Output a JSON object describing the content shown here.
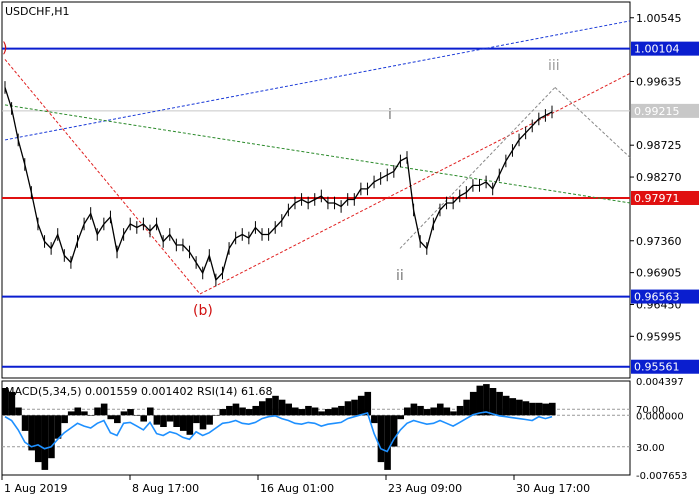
{
  "window": {
    "symbol_label": "USDCHF,H1"
  },
  "indicator": {
    "label": "MACD(5,34,5) 0.001559 0.001402 RSI(14) 61.68",
    "right_labels": [
      "0.004397",
      "70.00",
      "0.000000",
      "30.00",
      "-0.007653"
    ]
  },
  "chart_data": {
    "type": "line",
    "title": "USDCHF,H1",
    "x_tick_labels": [
      "1 Aug 2019",
      "8 Aug 17:00",
      "16 Aug 01:00",
      "23 Aug 09:00",
      "30 Aug 17:00"
    ],
    "y_tick_labels": [
      "1.00545",
      "0.99635",
      "0.98725",
      "0.98270",
      "0.97360",
      "0.96905",
      "0.96450",
      "0.95995"
    ],
    "price_range": [
      0.954,
      1.0077
    ],
    "levels": [
      {
        "value": 1.00104,
        "label": "1.00104",
        "color": "#0a1ecf"
      },
      {
        "value": 0.97971,
        "label": "0.97971",
        "color": "#e01010"
      },
      {
        "value": 0.96563,
        "label": "0.96563",
        "color": "#0a1ecf"
      },
      {
        "value": 0.95561,
        "label": "0.95561",
        "color": "#0a1ecf"
      }
    ],
    "current_price": {
      "value": 0.99215,
      "label": "0.99215",
      "color": "#c8c8c8"
    },
    "wave_labels": [
      {
        "text": "(b)",
        "color": "#d01010"
      },
      {
        "text": "i",
        "color": "#777777"
      },
      {
        "text": "ii",
        "color": "#777777"
      },
      {
        "text": "iii",
        "color": "#999999"
      },
      {
        "text": ")",
        "color": "#d01010"
      }
    ],
    "price_series": [
      0.9955,
      0.9925,
      0.988,
      0.9845,
      0.9805,
      0.976,
      0.9735,
      0.9725,
      0.9745,
      0.9715,
      0.9705,
      0.9735,
      0.976,
      0.9775,
      0.9745,
      0.976,
      0.977,
      0.972,
      0.9745,
      0.976,
      0.9755,
      0.976,
      0.975,
      0.976,
      0.9735,
      0.9745,
      0.973,
      0.973,
      0.972,
      0.9705,
      0.969,
      0.9715,
      0.968,
      0.969,
      0.9725,
      0.974,
      0.9745,
      0.974,
      0.9755,
      0.9745,
      0.9745,
      0.9755,
      0.9765,
      0.978,
      0.979,
      0.9795,
      0.979,
      0.9795,
      0.98,
      0.979,
      0.979,
      0.9785,
      0.9795,
      0.9795,
      0.981,
      0.981,
      0.982,
      0.9825,
      0.983,
      0.9835,
      0.985,
      0.9855,
      0.978,
      0.9735,
      0.9725,
      0.976,
      0.978,
      0.979,
      0.979,
      0.98,
      0.9805,
      0.9815,
      0.9815,
      0.982,
      0.981,
      0.983,
      0.985,
      0.9865,
      0.988,
      0.989,
      0.99,
      0.991,
      0.9915,
      0.992
    ],
    "macd_series": [
      0.0035,
      0.003,
      0.001,
      -0.002,
      -0.0045,
      -0.006,
      -0.007,
      -0.0055,
      -0.003,
      -0.001,
      0.0005,
      0.001,
      0.0005,
      0.0,
      0.001,
      0.0015,
      -0.0005,
      -0.001,
      0.0005,
      0.0008,
      0.0,
      -0.0008,
      0.001,
      -0.0012,
      -0.0015,
      -0.0008,
      -0.0015,
      -0.002,
      -0.0025,
      -0.001,
      -0.0018,
      -0.0012,
      0.0,
      0.0008,
      0.0012,
      0.0015,
      0.001,
      0.0008,
      0.0012,
      0.0018,
      0.0022,
      0.0025,
      0.002,
      0.0015,
      0.001,
      0.0008,
      0.0012,
      0.001,
      0.0005,
      0.0008,
      0.001,
      0.0012,
      0.0018,
      0.002,
      0.0025,
      0.003,
      -0.001,
      -0.006,
      -0.007,
      -0.004,
      -0.0005,
      0.001,
      0.0015,
      0.0012,
      0.0008,
      0.001,
      0.0015,
      0.001,
      0.0005,
      0.0012,
      0.002,
      0.003,
      0.0038,
      0.004,
      0.0035,
      0.003,
      0.0025,
      0.0022,
      0.002,
      0.0018,
      0.0016,
      0.0016,
      0.0015,
      0.0016
    ],
    "rsi_series": [
      62,
      58,
      48,
      35,
      30,
      32,
      28,
      30,
      38,
      45,
      50,
      55,
      52,
      50,
      55,
      58,
      45,
      42,
      55,
      56,
      52,
      48,
      56,
      44,
      42,
      46,
      44,
      40,
      38,
      46,
      42,
      45,
      50,
      55,
      56,
      58,
      55,
      54,
      56,
      60,
      62,
      63,
      60,
      58,
      55,
      54,
      56,
      55,
      52,
      54,
      55,
      56,
      60,
      62,
      64,
      66,
      44,
      28,
      25,
      38,
      48,
      55,
      58,
      56,
      54,
      55,
      58,
      55,
      52,
      56,
      60,
      64,
      66,
      67,
      65,
      63,
      62,
      61,
      60,
      59,
      58,
      62,
      60,
      62
    ]
  }
}
